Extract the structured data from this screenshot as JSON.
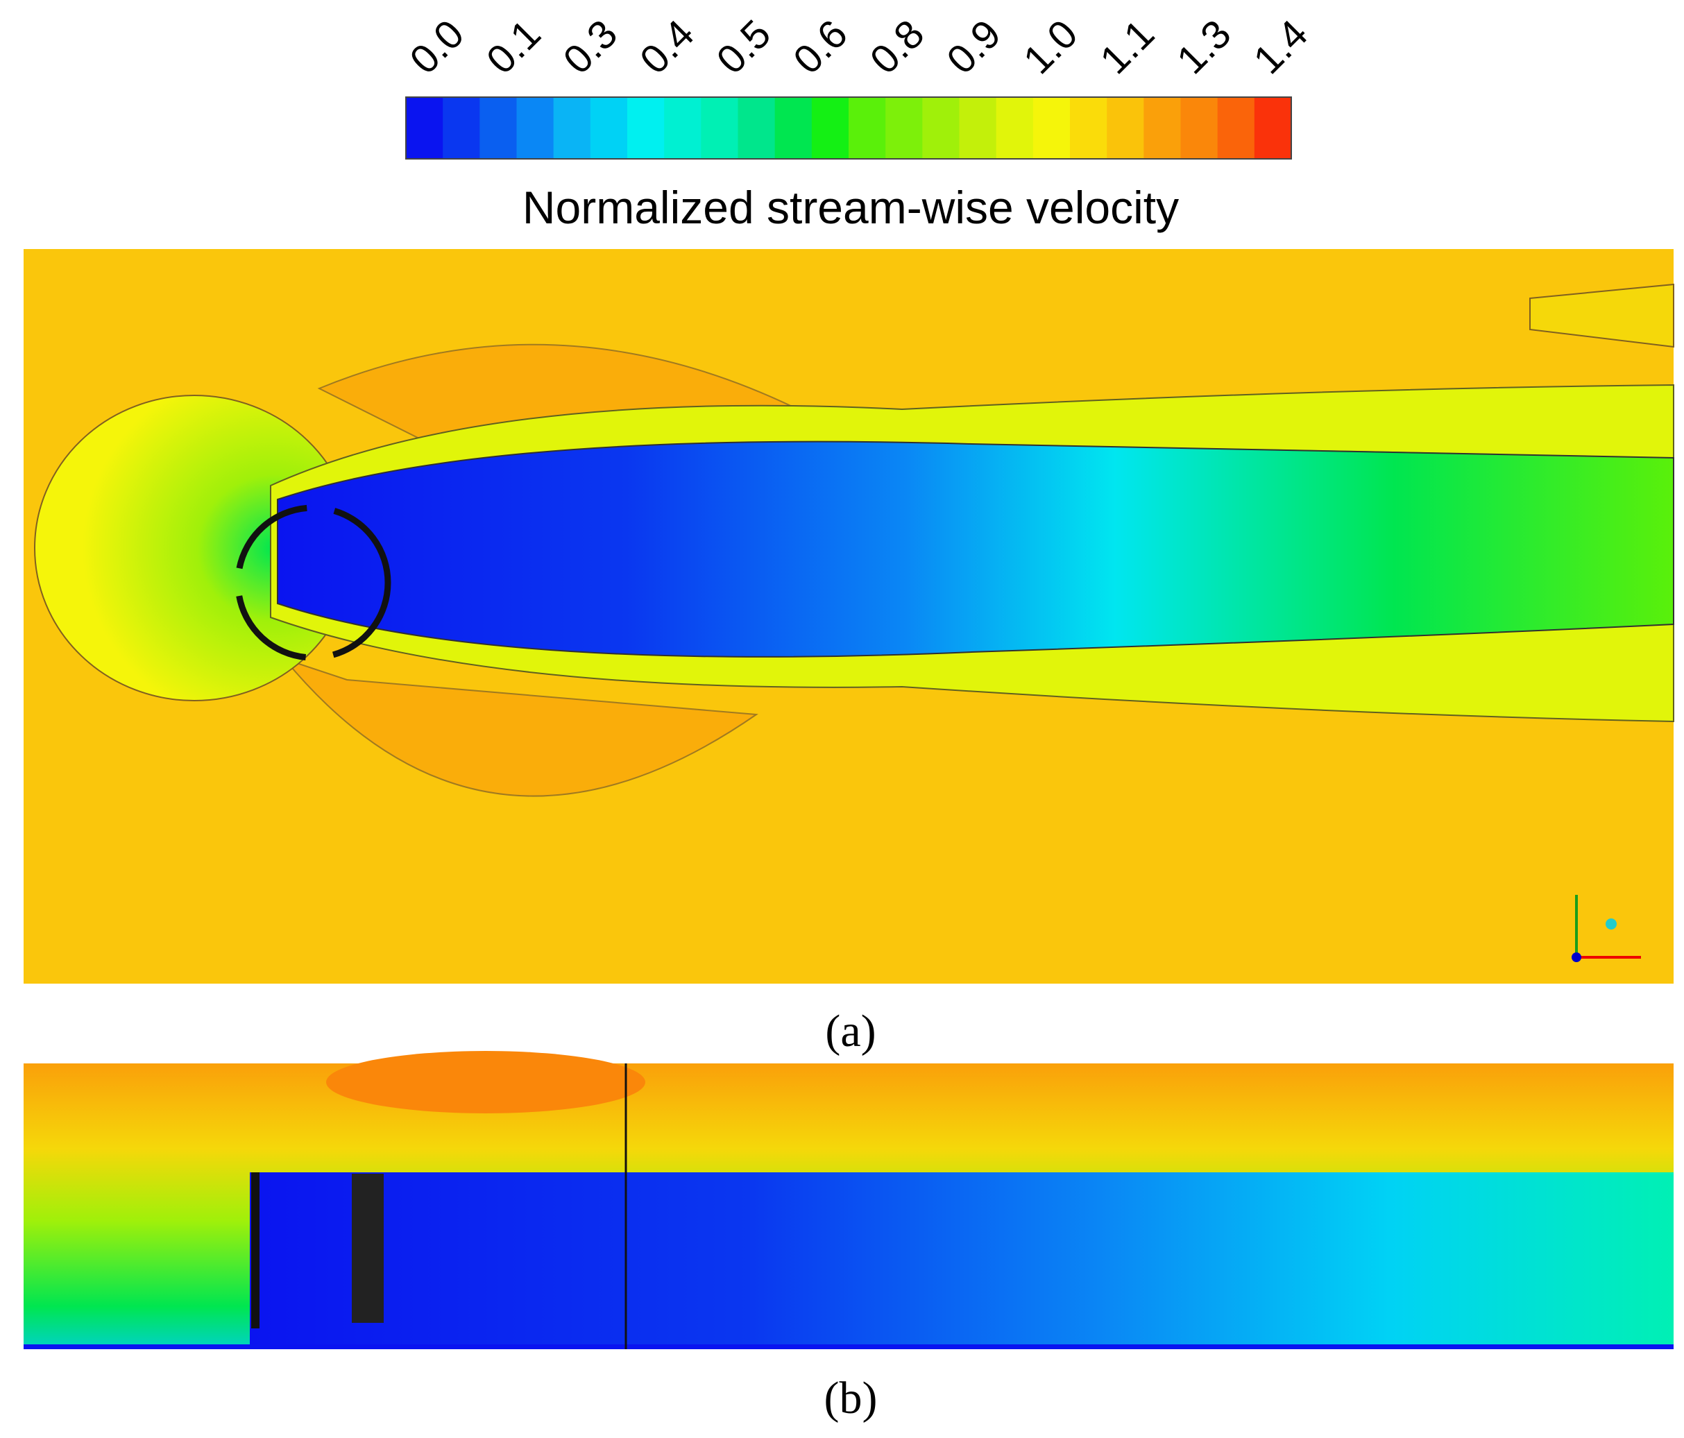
{
  "colorbar": {
    "title": "Normalized stream-wise velocity",
    "tick_labels": [
      "0.0",
      "0.1",
      "0.3",
      "0.4",
      "0.5",
      "0.6",
      "0.8",
      "0.9",
      "1.0",
      "1.1",
      "1.3",
      "1.4"
    ],
    "colors": [
      "#0a14f0",
      "#0a37f0",
      "#0a5ff0",
      "#0a87f5",
      "#0ab4f5",
      "#00d2f5",
      "#00f0f0",
      "#00f0d2",
      "#00f0b4",
      "#00e68c",
      "#00e650",
      "#14f014",
      "#5af00a",
      "#7df00a",
      "#a0f00a",
      "#c3f00a",
      "#e1f50a",
      "#f5f50a",
      "#fadc0a",
      "#fac30a",
      "#faa00a",
      "#fa870a",
      "#fa640a",
      "#fa320a"
    ]
  },
  "panels": [
    {
      "label": "(a)"
    },
    {
      "label": "(b)"
    }
  ]
}
